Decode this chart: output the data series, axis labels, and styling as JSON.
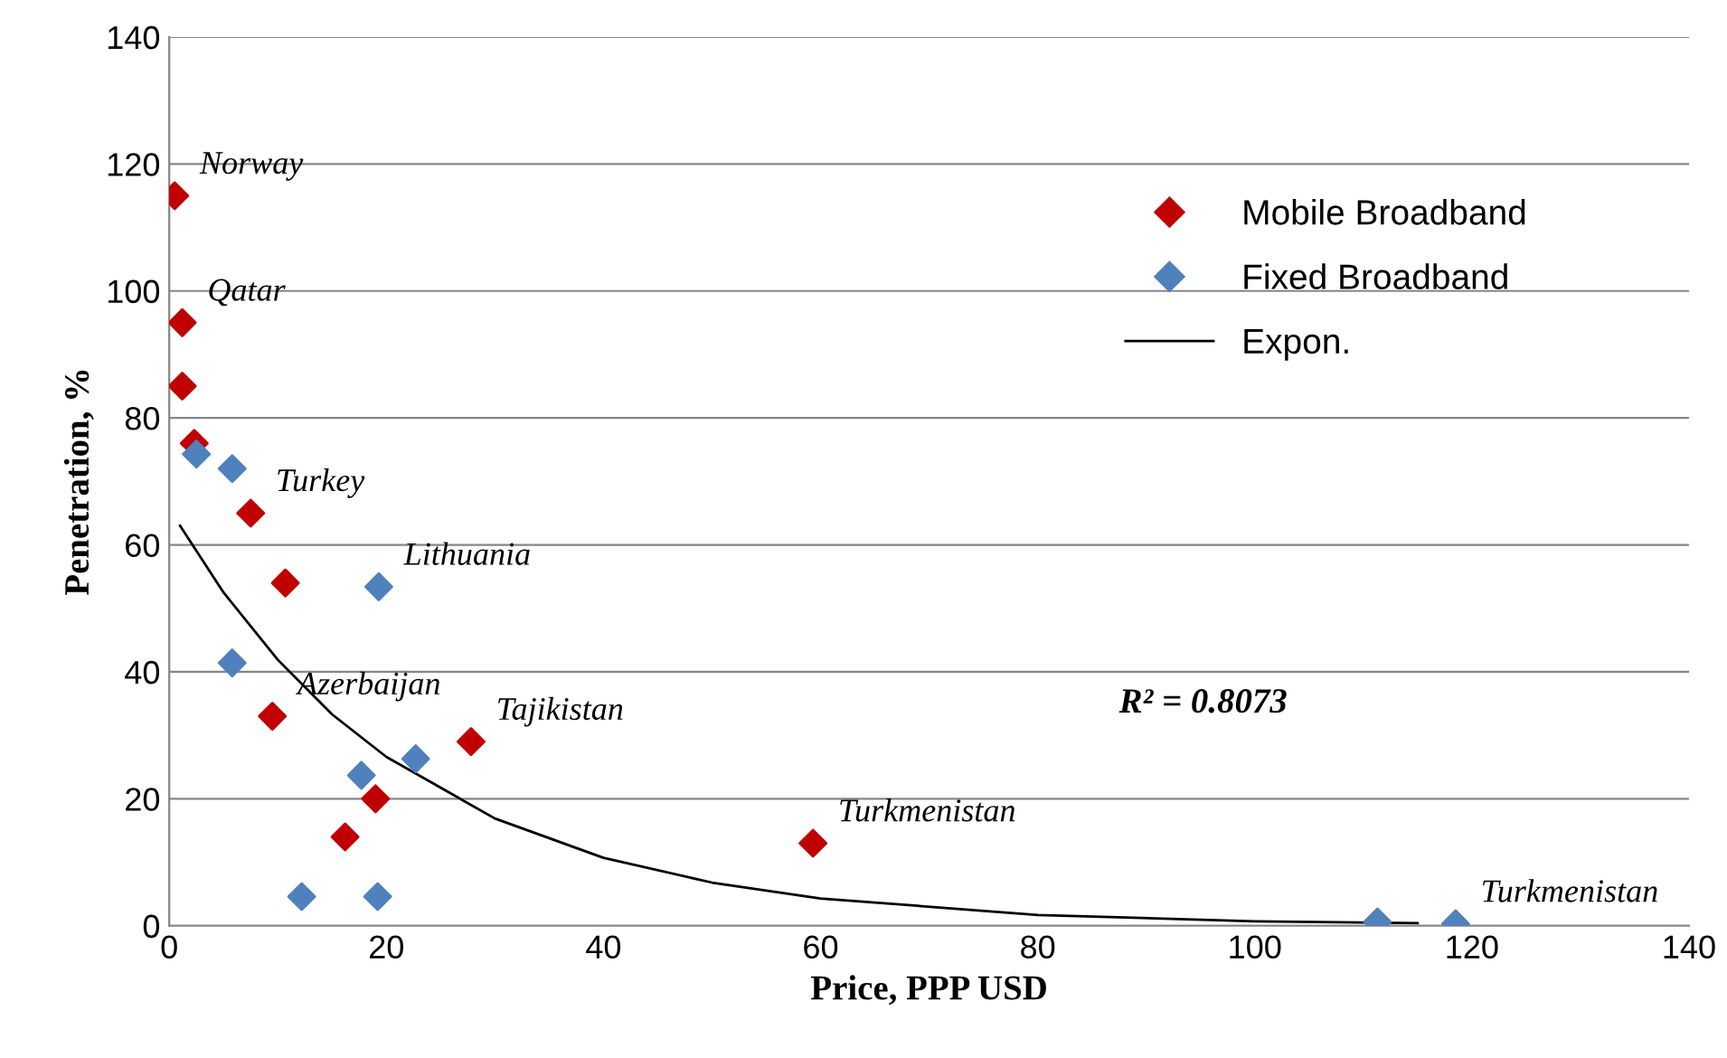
{
  "chart_data": {
    "type": "scatter",
    "xlabel": "Price, PPP USD",
    "ylabel": "Penetration, %",
    "xlim": [
      0,
      140
    ],
    "xticks": [
      0,
      20,
      40,
      60,
      80,
      100,
      120,
      140
    ],
    "ylim": [
      0,
      140
    ],
    "yticks": [
      0,
      20,
      40,
      60,
      80,
      100,
      120,
      140
    ],
    "grid": "y",
    "legend": "top right",
    "series": [
      {
        "name": "Mobile Broadband",
        "marker": "diamond",
        "color": "#c00000",
        "x": [
          0.5,
          1.2,
          1.2,
          2.3,
          7.5,
          10.7,
          9.5,
          16.2,
          19,
          27.8,
          59.3
        ],
        "values": [
          115,
          95,
          85,
          76,
          65,
          54,
          33,
          14,
          20,
          29,
          13
        ]
      },
      {
        "name": "Fixed Broadband",
        "marker": "diamond",
        "color": "#4f81bd",
        "x": [
          2.5,
          5.8,
          5.8,
          19.3,
          17.7,
          22.7,
          12.2,
          19.2,
          111.3,
          118.5
        ],
        "values": [
          74.3,
          72,
          41.4,
          53.4,
          23.7,
          26.3,
          4.6,
          4.6,
          0.6,
          0.3
        ]
      },
      {
        "name": "Expon.",
        "type": "line",
        "marker": "none",
        "color": "#000000",
        "x": [
          1,
          5,
          10,
          15,
          20,
          30,
          40,
          50,
          60,
          80,
          100,
          115
        ],
        "values": [
          63,
          52.5,
          41.9,
          33.3,
          26.6,
          16.9,
          10.7,
          6.8,
          4.3,
          1.7,
          0.7,
          0.4
        ]
      }
    ],
    "annotations": [
      {
        "text": "Norway",
        "x": 0.5,
        "y": 115
      },
      {
        "text": "Qatar",
        "x": 1.2,
        "y": 95
      },
      {
        "text": "Turkey",
        "x": 7.5,
        "y": 65
      },
      {
        "text": "Lithuania",
        "x": 19.3,
        "y": 53.4
      },
      {
        "text": "Azerbaijan",
        "x": 9.5,
        "y": 33
      },
      {
        "text": "Tajikistan",
        "x": 27.8,
        "y": 29
      },
      {
        "text": "Turkmenistan",
        "x": 59.3,
        "y": 13
      },
      {
        "text": "Turkmenistan",
        "x": 118.5,
        "y": 0.3
      },
      "R² = 0.8073"
    ]
  }
}
